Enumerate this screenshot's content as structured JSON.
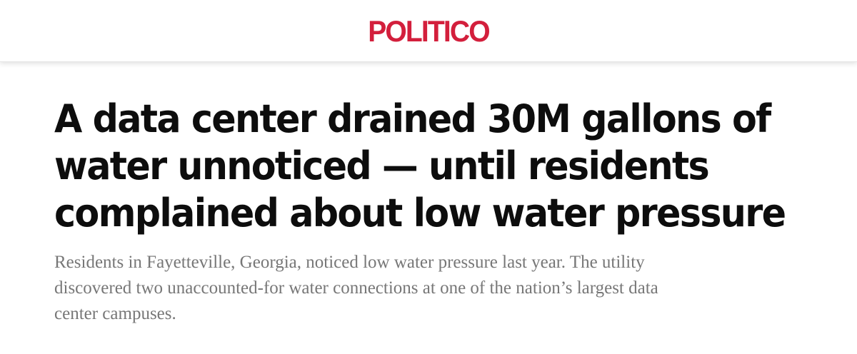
{
  "brand": {
    "name": "POLITICO",
    "color": "#d31f3c"
  },
  "article": {
    "headline_lines": [
      "A data center drained 30M gallons of",
      "water unnoticed — until residents",
      "complained about low water pressure"
    ],
    "dek_lines": [
      "Residents in Fayetteville, Georgia, noticed low water pressure last year. The utility",
      "discovered two unaccounted-for water connections at one of the nation’s largest data",
      "center campuses."
    ]
  }
}
